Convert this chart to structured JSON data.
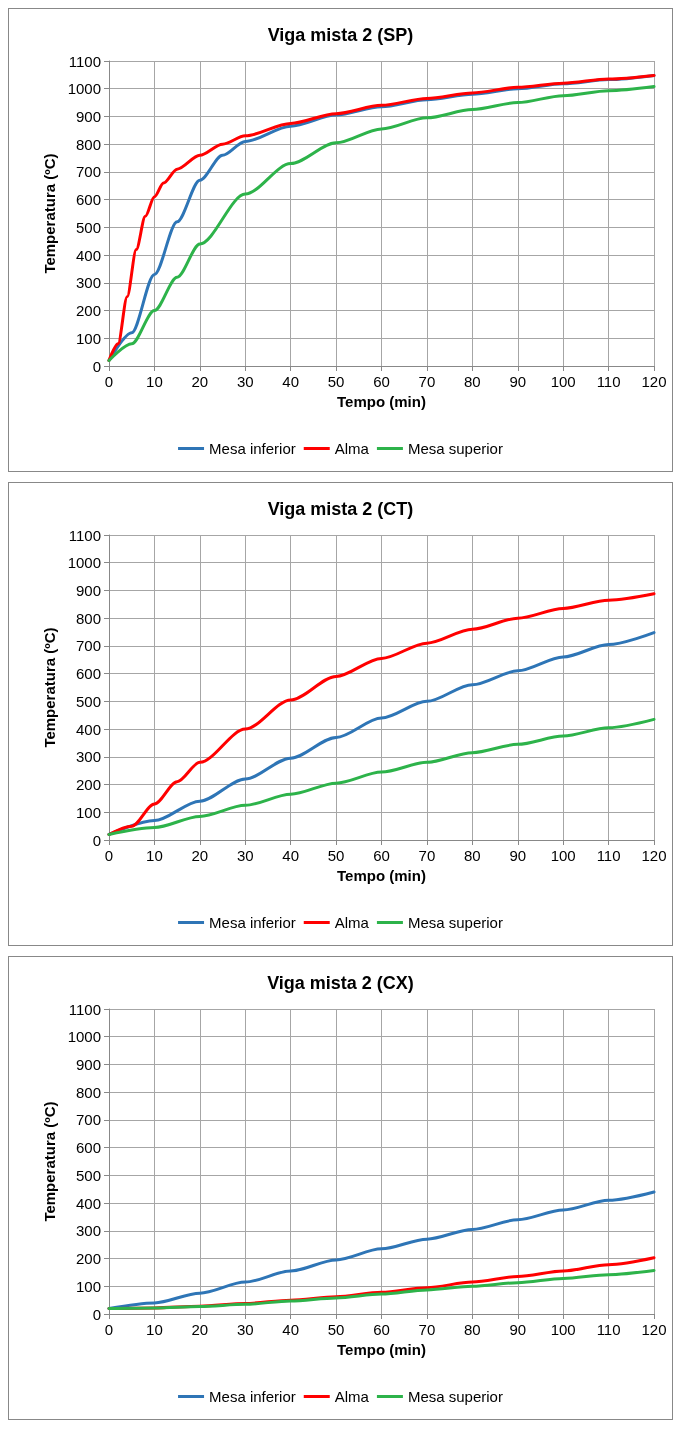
{
  "chart_data": [
    {
      "type": "line",
      "title": "Viga mista 2 (SP)",
      "xlabel": "Tempo (min)",
      "ylabel": "Temperatura (ºC)",
      "xlim": [
        0,
        120
      ],
      "xticks": [
        0,
        10,
        20,
        30,
        40,
        50,
        60,
        70,
        80,
        90,
        100,
        110,
        120
      ],
      "ylim": [
        0,
        1100
      ],
      "yticks": [
        0,
        100,
        200,
        300,
        400,
        500,
        600,
        700,
        800,
        900,
        1000,
        1100
      ],
      "grid": true,
      "legend": "bottom",
      "series": [
        {
          "name": "Mesa inferior",
          "color": "#2e75b6",
          "x": [
            0,
            5,
            10,
            15,
            20,
            25,
            30,
            40,
            50,
            60,
            70,
            80,
            90,
            100,
            110,
            120
          ],
          "values": [
            20,
            120,
            330,
            520,
            670,
            760,
            810,
            865,
            905,
            935,
            960,
            980,
            1000,
            1018,
            1033,
            1048
          ]
        },
        {
          "name": "Alma",
          "color": "#ff0000",
          "x": [
            0,
            2,
            4,
            6,
            8,
            10,
            12,
            15,
            20,
            25,
            30,
            40,
            50,
            60,
            70,
            80,
            90,
            100,
            110,
            120
          ],
          "values": [
            20,
            80,
            250,
            420,
            540,
            610,
            660,
            710,
            760,
            800,
            830,
            875,
            910,
            940,
            965,
            985,
            1005,
            1020,
            1035,
            1048
          ]
        },
        {
          "name": "Mesa superior",
          "color": "#2db34a",
          "x": [
            0,
            5,
            10,
            15,
            20,
            30,
            40,
            50,
            60,
            70,
            80,
            90,
            100,
            110,
            120
          ],
          "values": [
            20,
            80,
            200,
            320,
            440,
            620,
            730,
            805,
            855,
            895,
            925,
            950,
            975,
            993,
            1008
          ]
        }
      ]
    },
    {
      "type": "line",
      "title": "Viga mista 2 (CT)",
      "xlabel": "Tempo (min)",
      "ylabel": "Temperatura (ºC)",
      "xlim": [
        0,
        120
      ],
      "xticks": [
        0,
        10,
        20,
        30,
        40,
        50,
        60,
        70,
        80,
        90,
        100,
        110,
        120
      ],
      "ylim": [
        0,
        1100
      ],
      "yticks": [
        0,
        100,
        200,
        300,
        400,
        500,
        600,
        700,
        800,
        900,
        1000,
        1100
      ],
      "grid": true,
      "legend": "bottom",
      "series": [
        {
          "name": "Mesa inferior",
          "color": "#2e75b6",
          "x": [
            0,
            10,
            20,
            30,
            40,
            50,
            60,
            70,
            80,
            90,
            100,
            110,
            120
          ],
          "values": [
            20,
            70,
            140,
            220,
            295,
            370,
            440,
            500,
            560,
            610,
            660,
            705,
            748
          ]
        },
        {
          "name": "Alma",
          "color": "#ff0000",
          "x": [
            0,
            5,
            10,
            15,
            20,
            30,
            40,
            50,
            60,
            70,
            80,
            90,
            100,
            110,
            120
          ],
          "values": [
            20,
            50,
            130,
            210,
            280,
            400,
            505,
            590,
            655,
            710,
            760,
            800,
            835,
            865,
            888
          ]
        },
        {
          "name": "Mesa superior",
          "color": "#2db34a",
          "x": [
            0,
            10,
            20,
            30,
            40,
            50,
            60,
            70,
            80,
            90,
            100,
            110,
            120
          ],
          "values": [
            20,
            45,
            85,
            125,
            165,
            205,
            245,
            280,
            315,
            345,
            375,
            405,
            435
          ]
        }
      ]
    },
    {
      "type": "line",
      "title": "Viga mista 2 (CX)",
      "xlabel": "Tempo (min)",
      "ylabel": "Temperatura (ºC)",
      "xlim": [
        0,
        120
      ],
      "xticks": [
        0,
        10,
        20,
        30,
        40,
        50,
        60,
        70,
        80,
        90,
        100,
        110,
        120
      ],
      "ylim": [
        0,
        1100
      ],
      "yticks": [
        0,
        100,
        200,
        300,
        400,
        500,
        600,
        700,
        800,
        900,
        1000,
        1100
      ],
      "grid": true,
      "legend": "bottom",
      "series": [
        {
          "name": "Mesa inferior",
          "color": "#2e75b6",
          "x": [
            0,
            10,
            20,
            30,
            40,
            50,
            60,
            70,
            80,
            90,
            100,
            110,
            120
          ],
          "values": [
            20,
            40,
            75,
            115,
            155,
            195,
            235,
            270,
            305,
            340,
            375,
            410,
            440
          ]
        },
        {
          "name": "Alma",
          "color": "#ff0000",
          "x": [
            0,
            10,
            20,
            30,
            40,
            50,
            60,
            70,
            80,
            90,
            100,
            110,
            120
          ],
          "values": [
            20,
            22,
            28,
            38,
            50,
            62,
            78,
            95,
            115,
            135,
            155,
            178,
            203
          ]
        },
        {
          "name": "Mesa superior",
          "color": "#2db34a",
          "x": [
            0,
            10,
            20,
            30,
            40,
            50,
            60,
            70,
            80,
            90,
            100,
            110,
            120
          ],
          "values": [
            20,
            22,
            27,
            35,
            47,
            58,
            72,
            87,
            100,
            113,
            128,
            142,
            157
          ]
        }
      ]
    }
  ]
}
